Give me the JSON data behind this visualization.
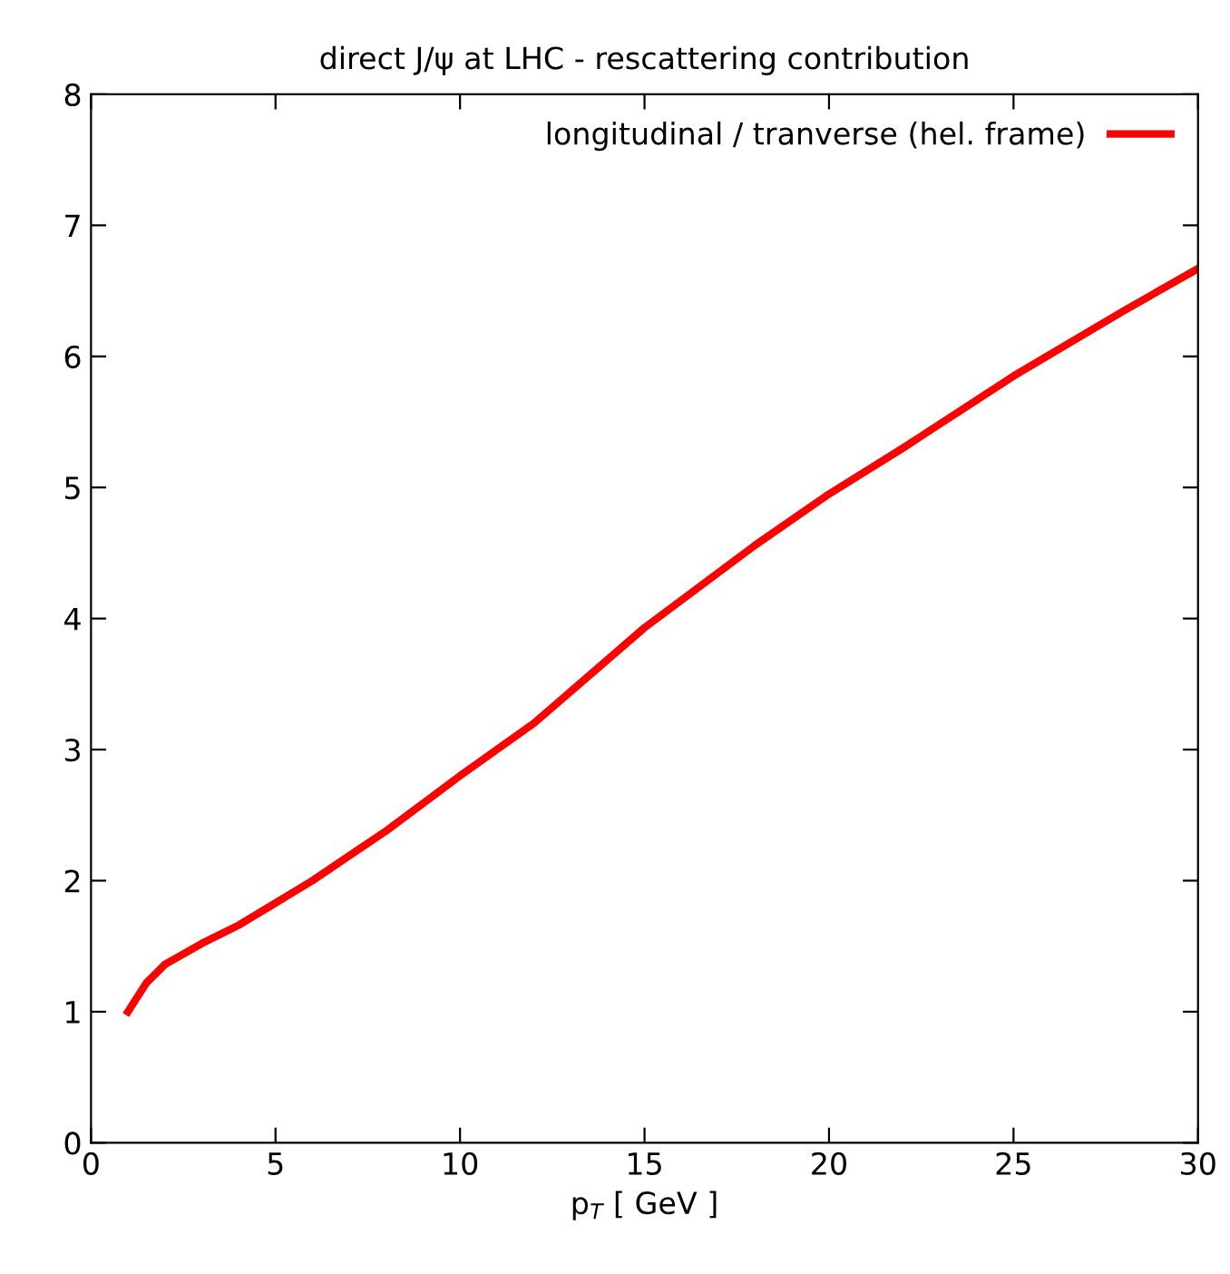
{
  "chart_data": {
    "type": "line",
    "title": "direct J/ψ at LHC - rescattering contribution",
    "xlabel": "p$_{T}$ [ GeV ]",
    "series": [
      {
        "name": "longitudinal / tranverse (hel. frame)",
        "color": "#ff0000",
        "x": [
          1,
          1.5,
          2,
          3,
          4,
          5,
          6,
          7,
          8,
          10,
          12,
          15,
          18,
          20,
          22,
          25,
          28,
          30
        ],
        "values": [
          1.0,
          1.22,
          1.36,
          1.52,
          1.66,
          1.83,
          2.0,
          2.19,
          2.38,
          2.8,
          3.2,
          3.93,
          4.56,
          4.95,
          5.3,
          5.85,
          6.35,
          6.67
        ]
      }
    ],
    "xlim": [
      0,
      30
    ],
    "xticks": [
      0,
      5,
      10,
      15,
      20,
      25,
      30
    ],
    "ylim": [
      0,
      8
    ],
    "yticks": [
      0,
      1,
      2,
      3,
      4,
      5,
      6,
      7,
      8
    ],
    "legend": "top right",
    "grid": false,
    "line_style": "solid",
    "marker": "none"
  }
}
